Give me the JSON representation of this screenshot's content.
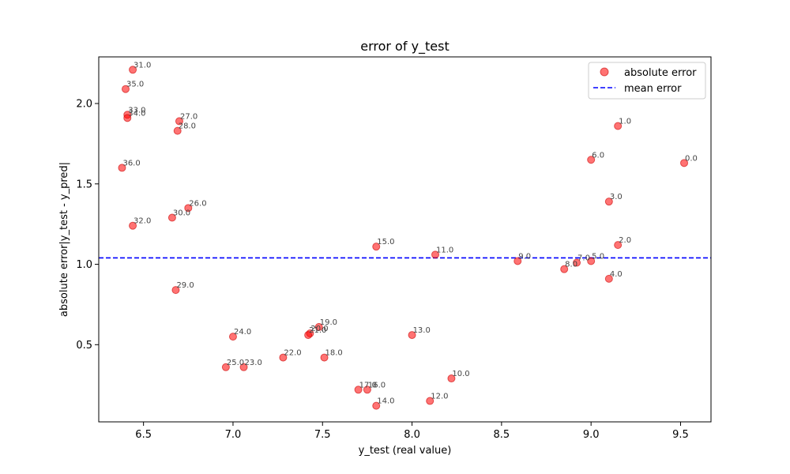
{
  "chart_data": {
    "type": "scatter",
    "title": "error of y_test",
    "xlabel": "y_test (real value)",
    "ylabel": "absolute error|y_test - y_pred|",
    "xlim": [
      6.25,
      9.67
    ],
    "ylim": [
      0.02,
      2.29
    ],
    "xticks": [
      "6.5",
      "7.0",
      "7.5",
      "8.0",
      "8.5",
      "9.0",
      "9.5"
    ],
    "yticks": [
      "0.5",
      "1.0",
      "1.5",
      "2.0"
    ],
    "legend_position": "top-right",
    "series": [
      {
        "name": "absolute error",
        "color": "#ff0000",
        "points": [
          {
            "x": 9.52,
            "y": 1.63,
            "label": "0.0"
          },
          {
            "x": 9.15,
            "y": 1.86,
            "label": "1.0"
          },
          {
            "x": 9.15,
            "y": 1.12,
            "label": "2.0"
          },
          {
            "x": 9.1,
            "y": 1.39,
            "label": "3.0"
          },
          {
            "x": 9.1,
            "y": 0.91,
            "label": "4.0"
          },
          {
            "x": 9.0,
            "y": 1.02,
            "label": "5.0"
          },
          {
            "x": 9.0,
            "y": 1.65,
            "label": "6.0"
          },
          {
            "x": 8.92,
            "y": 1.01,
            "label": "7.0"
          },
          {
            "x": 8.85,
            "y": 0.97,
            "label": "8.0"
          },
          {
            "x": 8.59,
            "y": 1.02,
            "label": "9.0"
          },
          {
            "x": 8.22,
            "y": 0.29,
            "label": "10.0"
          },
          {
            "x": 8.13,
            "y": 1.06,
            "label": "11.0"
          },
          {
            "x": 8.1,
            "y": 0.15,
            "label": "12.0"
          },
          {
            "x": 8.0,
            "y": 0.56,
            "label": "13.0"
          },
          {
            "x": 7.8,
            "y": 0.12,
            "label": "14.0"
          },
          {
            "x": 7.8,
            "y": 1.11,
            "label": "15.0"
          },
          {
            "x": 7.75,
            "y": 0.22,
            "label": "16.0"
          },
          {
            "x": 7.7,
            "y": 0.22,
            "label": "17.0"
          },
          {
            "x": 7.51,
            "y": 0.42,
            "label": "18.0"
          },
          {
            "x": 7.48,
            "y": 0.61,
            "label": "19.0"
          },
          {
            "x": 7.43,
            "y": 0.57,
            "label": "20.0"
          },
          {
            "x": 7.42,
            "y": 0.56,
            "label": "21.0"
          },
          {
            "x": 7.28,
            "y": 0.42,
            "label": "22.0"
          },
          {
            "x": 7.06,
            "y": 0.36,
            "label": "23.0"
          },
          {
            "x": 7.0,
            "y": 0.55,
            "label": "24.0"
          },
          {
            "x": 6.96,
            "y": 0.36,
            "label": "25.0"
          },
          {
            "x": 6.75,
            "y": 1.35,
            "label": "26.0"
          },
          {
            "x": 6.7,
            "y": 1.89,
            "label": "27.0"
          },
          {
            "x": 6.69,
            "y": 1.83,
            "label": "28.0"
          },
          {
            "x": 6.68,
            "y": 0.84,
            "label": "29.0"
          },
          {
            "x": 6.66,
            "y": 1.29,
            "label": "30.0"
          },
          {
            "x": 6.44,
            "y": 2.21,
            "label": "31.0"
          },
          {
            "x": 6.44,
            "y": 1.24,
            "label": "32.0"
          },
          {
            "x": 6.41,
            "y": 1.93,
            "label": "33.0"
          },
          {
            "x": 6.41,
            "y": 1.91,
            "label": "34.0"
          },
          {
            "x": 6.4,
            "y": 2.09,
            "label": "35.0"
          },
          {
            "x": 6.38,
            "y": 1.6,
            "label": "36.0"
          }
        ]
      },
      {
        "name": "mean error",
        "color": "#0000ff",
        "type": "hline",
        "y": 1.04
      }
    ]
  }
}
